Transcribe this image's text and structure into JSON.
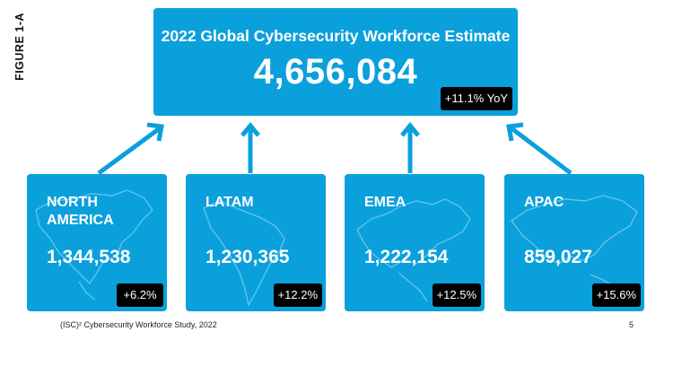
{
  "figure_label": "FIGURE 1-A",
  "top": {
    "title": "2022 Global Cybersecurity Workforce Estimate",
    "value": "4,656,084",
    "change": "+11.1% YoY"
  },
  "regions": [
    {
      "name": "NORTH AMERICA",
      "value": "1,344,538",
      "change": "+6.2%",
      "icon": "north-america-map"
    },
    {
      "name": "LATAM",
      "value": "1,230,365",
      "change": "+12.2%",
      "icon": "latin-america-map"
    },
    {
      "name": "EMEA",
      "value": "1,222,154",
      "change": "+12.5%",
      "icon": "europe-map"
    },
    {
      "name": "APAC",
      "value": "859,027",
      "change": "+15.6%",
      "icon": "asia-pacific-map"
    }
  ],
  "footer": {
    "source": "(ISC)² Cybersecurity Workforce Study, 2022",
    "page": "5"
  },
  "colors": {
    "box_fill": "#0aa0dc",
    "badge_fill": "#000000",
    "text_light": "#ffffff",
    "arrow": "#0aa0dc"
  }
}
